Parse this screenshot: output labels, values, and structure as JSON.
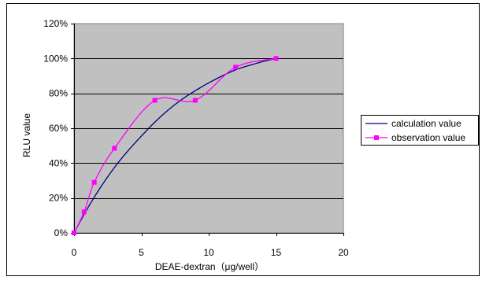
{
  "chart_data": {
    "type": "line",
    "title": "",
    "xlabel": "DEAE-dextran（μg/well）",
    "ylabel": "RLU value",
    "xlim": [
      0,
      20
    ],
    "ylim": [
      0,
      1.2
    ],
    "x_ticks": [
      "0",
      "5",
      "10",
      "15",
      "20"
    ],
    "y_ticks": [
      "0%",
      "20%",
      "40%",
      "60%",
      "80%",
      "100%",
      "120%"
    ],
    "grid": "horizontal",
    "legend_position": "right",
    "colors": {
      "plot_background": "#c0c0c0",
      "calculation": "#000080",
      "observation": "#ff00ff"
    },
    "series": [
      {
        "name": "calculation value",
        "style": "smooth line",
        "x": [
          0,
          1,
          2,
          3,
          4,
          5,
          6,
          7,
          8,
          9,
          10,
          11,
          12,
          13,
          14,
          15
        ],
        "y": [
          0,
          0.14,
          0.265,
          0.375,
          0.47,
          0.555,
          0.635,
          0.705,
          0.765,
          0.815,
          0.86,
          0.9,
          0.935,
          0.96,
          0.982,
          1.0
        ]
      },
      {
        "name": "observation value",
        "style": "smooth line with square markers",
        "x": [
          0,
          0.75,
          1.5,
          3,
          6,
          9,
          12,
          15
        ],
        "y": [
          0,
          0.12,
          0.29,
          0.485,
          0.76,
          0.76,
          0.95,
          1.0
        ]
      }
    ]
  }
}
